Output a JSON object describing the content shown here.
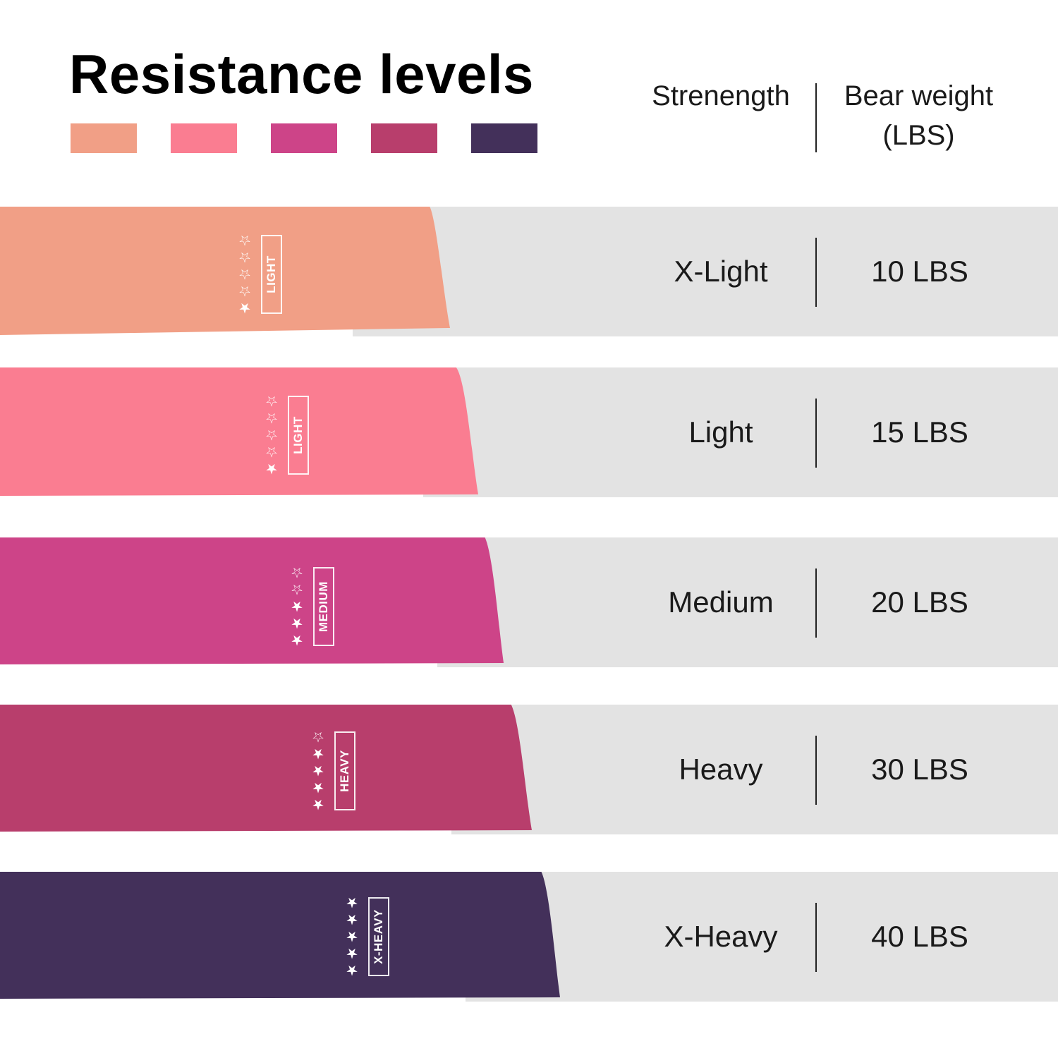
{
  "title": "Resistance levels",
  "swatches": [
    "#f19f86",
    "#fa7d91",
    "#cd4488",
    "#b83e6c",
    "#43305a"
  ],
  "headers": {
    "strength": "Strenength",
    "bear_weight_line1": "Bear weight",
    "bear_weight_line2": "(LBS)"
  },
  "levels": [
    {
      "strength": "X-Light",
      "weight": "10 LBS",
      "band_label": "LIGHT",
      "stars": "★☆☆☆☆",
      "color": "#f19f86"
    },
    {
      "strength": "Light",
      "weight": "15 LBS",
      "band_label": "LIGHT",
      "stars": "★☆☆☆☆",
      "color": "#fa7d91"
    },
    {
      "strength": "Medium",
      "weight": "20 LBS",
      "band_label": "MEDIUM",
      "stars": "★★★☆☆",
      "color": "#cd4488"
    },
    {
      "strength": "Heavy",
      "weight": "30 LBS",
      "band_label": "HEAVY",
      "stars": "★★★★☆",
      "color": "#b83e6c"
    },
    {
      "strength": "X-Heavy",
      "weight": "40 LBS",
      "band_label": "X-HEAVY",
      "stars": "★★★★★",
      "color": "#43305a"
    }
  ]
}
